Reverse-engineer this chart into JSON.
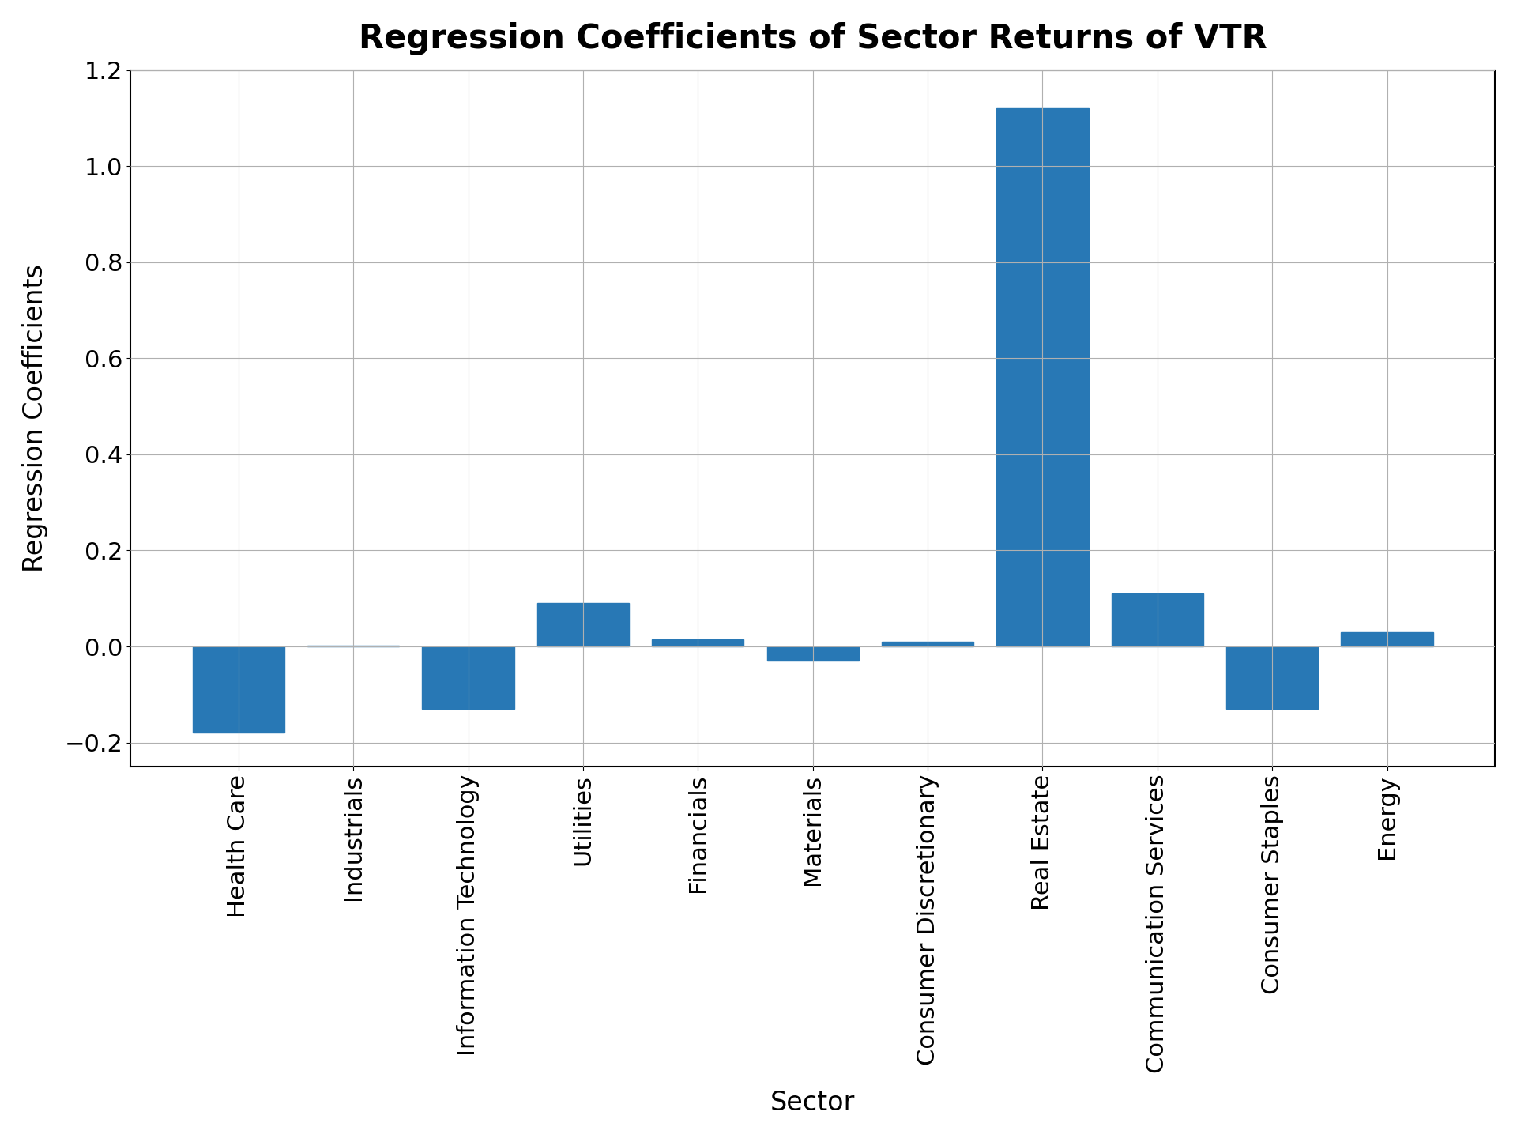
{
  "categories": [
    "Health Care",
    "Industrials",
    "Information Technology",
    "Utilities",
    "Financials",
    "Materials",
    "Consumer Discretionary",
    "Real Estate",
    "Communication Services",
    "Consumer Staples",
    "Energy"
  ],
  "values": [
    -0.18,
    0.001,
    -0.13,
    0.09,
    0.015,
    -0.03,
    0.01,
    1.12,
    0.11,
    -0.13,
    0.03
  ],
  "bar_color": "#2878b5",
  "title": "Regression Coefficients of Sector Returns of VTR",
  "xlabel": "Sector",
  "ylabel": "Regression Coefficients",
  "ylim": [
    -0.25,
    1.2
  ],
  "title_fontsize": 30,
  "label_fontsize": 24,
  "tick_fontsize": 22,
  "background_color": "#ffffff",
  "grid_color": "#b0b0b0"
}
